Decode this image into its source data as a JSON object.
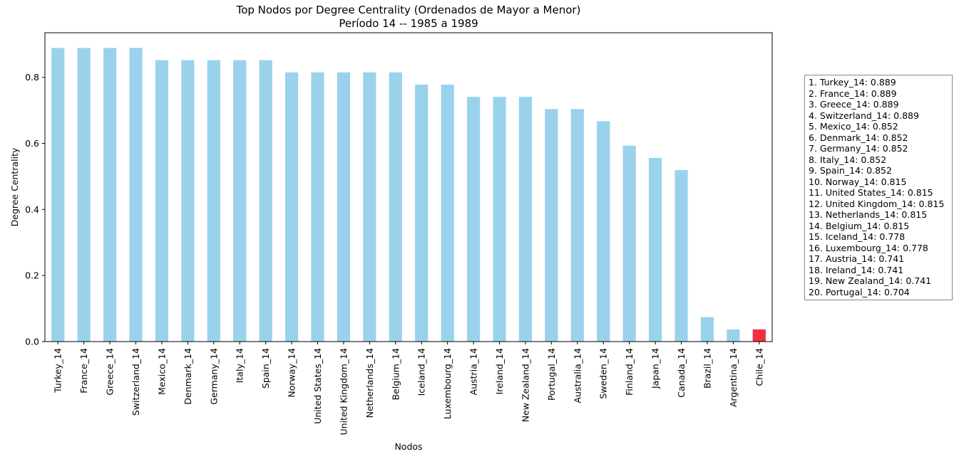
{
  "chart_data": {
    "type": "bar",
    "title": "Top Nodos por Degree Centrality (Ordenados de Mayor a Menor)",
    "subtitle": "Período 14 -- 1985 a 1989",
    "xlabel": "Nodos",
    "ylabel": "Degree Centrality",
    "ylim": [
      0,
      0.935
    ],
    "yticks": [
      "0.0",
      "0.2",
      "0.4",
      "0.6",
      "0.8"
    ],
    "grid": false,
    "legend_position": "right",
    "bar_color": "#9ad2ec",
    "highlight_color": "#f03040",
    "highlight_category": "Chile_14",
    "categories": [
      "Turkey_14",
      "France_14",
      "Greece_14",
      "Switzerland_14",
      "Mexico_14",
      "Denmark_14",
      "Germany_14",
      "Italy_14",
      "Spain_14",
      "Norway_14",
      "United States_14",
      "United Kingdom_14",
      "Netherlands_14",
      "Belgium_14",
      "Iceland_14",
      "Luxembourg_14",
      "Austria_14",
      "Ireland_14",
      "New Zealand_14",
      "Portugal_14",
      "Australia_14",
      "Sweden_14",
      "Finland_14",
      "Japan_14",
      "Canada_14",
      "Brazil_14",
      "Argentina_14",
      "Chile_14"
    ],
    "values": [
      0.889,
      0.889,
      0.889,
      0.889,
      0.852,
      0.852,
      0.852,
      0.852,
      0.852,
      0.815,
      0.815,
      0.815,
      0.815,
      0.815,
      0.778,
      0.778,
      0.741,
      0.741,
      0.741,
      0.704,
      0.704,
      0.667,
      0.593,
      0.556,
      0.519,
      0.074,
      0.037,
      0.037
    ]
  },
  "legend": {
    "entries": [
      "1. Turkey_14: 0.889",
      "2. France_14: 0.889",
      "3. Greece_14: 0.889",
      "4. Switzerland_14: 0.889",
      "5. Mexico_14: 0.852",
      "6. Denmark_14: 0.852",
      "7. Germany_14: 0.852",
      "8. Italy_14: 0.852",
      "9. Spain_14: 0.852",
      "10. Norway_14: 0.815",
      "11. United States_14: 0.815",
      "12. United Kingdom_14: 0.815",
      "13. Netherlands_14: 0.815",
      "14. Belgium_14: 0.815",
      "15. Iceland_14: 0.778",
      "16. Luxembourg_14: 0.778",
      "17. Austria_14: 0.741",
      "18. Ireland_14: 0.741",
      "19. New Zealand_14: 0.741",
      "20. Portugal_14: 0.704"
    ]
  }
}
